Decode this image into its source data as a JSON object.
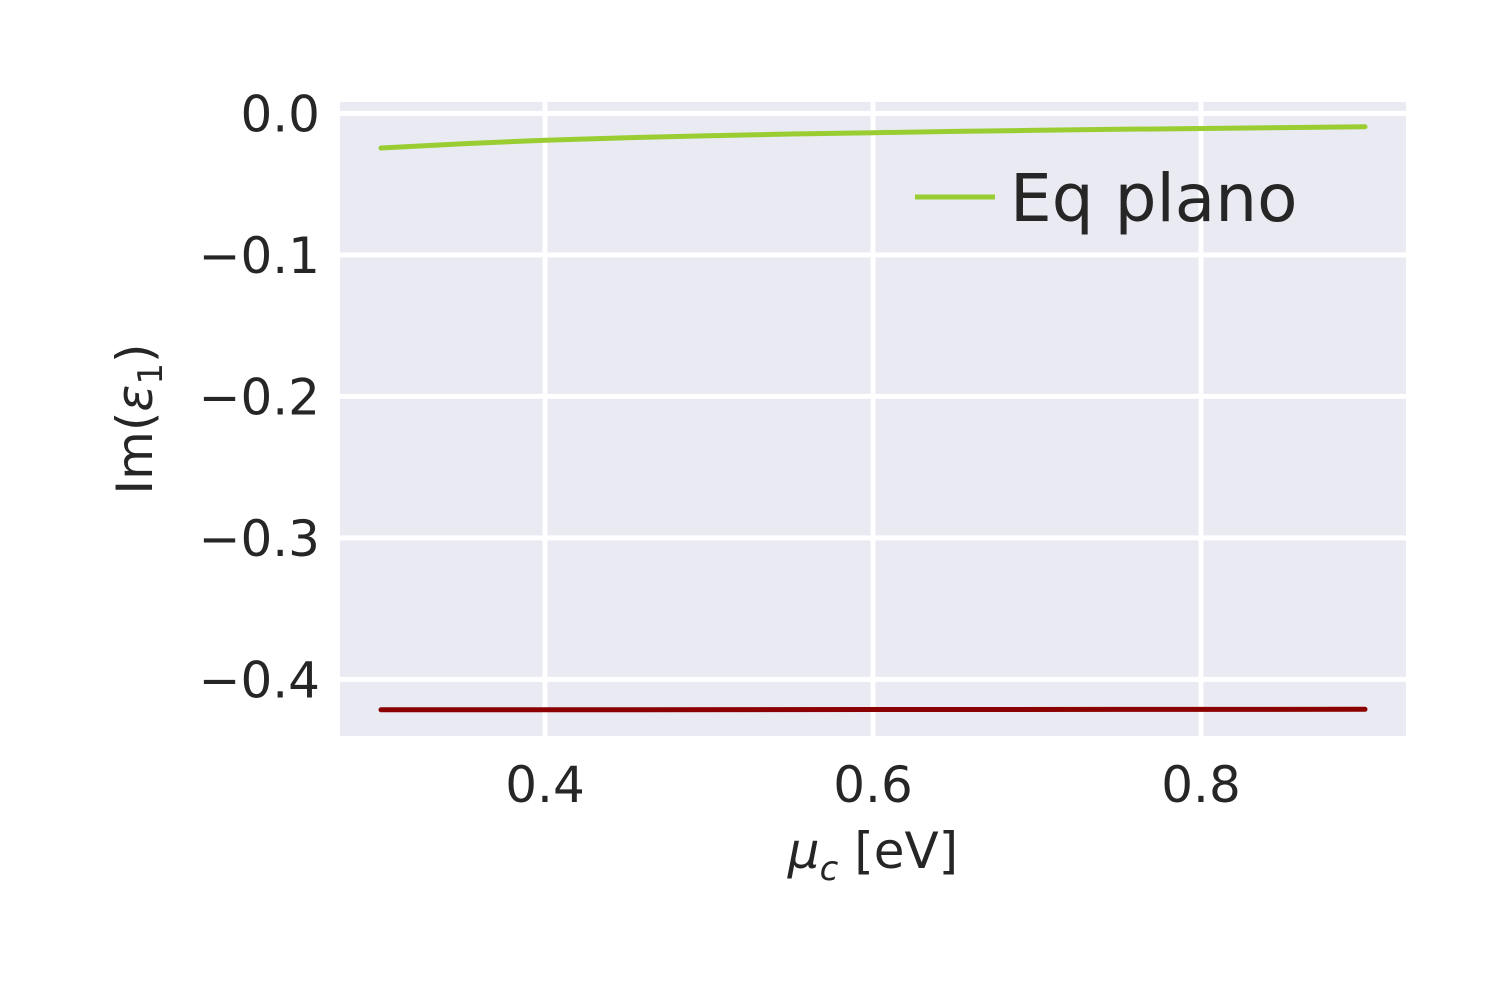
{
  "chart_data": {
    "type": "line",
    "xlabel": "μc [eV]",
    "xlabel_parts": {
      "base": "μ",
      "sub": "c",
      "rest": " [eV]"
    },
    "ylabel": "Im(ε1)",
    "ylabel_parts": {
      "pre": "Im(",
      "base": "ε",
      "sub": "1",
      "post": ")"
    },
    "xlim": [
      0.275,
      0.925
    ],
    "ylim": [
      -0.44,
      0.008
    ],
    "xticks": [
      0.4,
      0.6,
      0.8
    ],
    "xtick_labels": [
      "0.4",
      "0.6",
      "0.8"
    ],
    "yticks": [
      0.0,
      -0.1,
      -0.2,
      -0.3,
      -0.4
    ],
    "ytick_labels": [
      "0.0",
      "−0.1",
      "−0.2",
      "−0.3",
      "−0.4"
    ],
    "grid": true,
    "background": "#EAEAF2",
    "legend_position": "upper right",
    "series": [
      {
        "name": "Eq plano",
        "color": "#9ACD32",
        "in_legend": true,
        "x": [
          0.3,
          0.35,
          0.4,
          0.45,
          0.5,
          0.55,
          0.6,
          0.65,
          0.7,
          0.75,
          0.8,
          0.85,
          0.9
        ],
        "y": [
          -0.0245,
          -0.0215,
          -0.019,
          -0.0172,
          -0.0158,
          -0.0146,
          -0.0137,
          -0.0128,
          -0.012,
          -0.0113,
          -0.0107,
          -0.0101,
          -0.0095
        ]
      },
      {
        "color": "#8B0000",
        "in_legend": false,
        "x": [
          0.3,
          0.45,
          0.6,
          0.75,
          0.9
        ],
        "y": [
          -0.4215,
          -0.4214,
          -0.4213,
          -0.4212,
          -0.4211
        ]
      }
    ]
  }
}
